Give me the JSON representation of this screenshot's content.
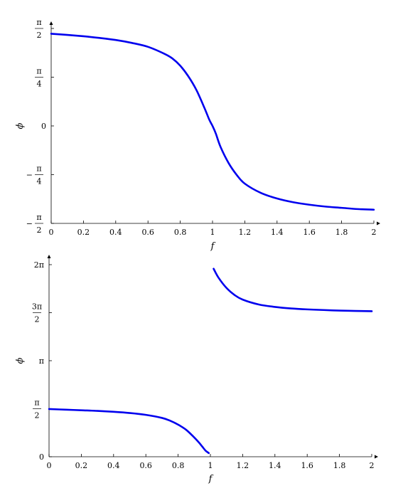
{
  "chart_data": [
    {
      "type": "line",
      "xlabel": "f",
      "ylabel": "ϕ",
      "xlim": [
        0,
        2
      ],
      "ylim": [
        -1.5708,
        1.5708
      ],
      "grid": false,
      "legend": "none",
      "line_color": "#0000ee",
      "x_ticks": [
        {
          "value": 0,
          "label": "0"
        },
        {
          "value": 0.2,
          "label": "0.2"
        },
        {
          "value": 0.4,
          "label": "0.4"
        },
        {
          "value": 0.6,
          "label": "0.6"
        },
        {
          "value": 0.8,
          "label": "0.8"
        },
        {
          "value": 1,
          "label": "1"
        },
        {
          "value": 1.2,
          "label": "1.2"
        },
        {
          "value": 1.4,
          "label": "1.4"
        },
        {
          "value": 1.6,
          "label": "1.6"
        },
        {
          "value": 1.8,
          "label": "1.8"
        },
        {
          "value": 2,
          "label": "2"
        }
      ],
      "y_ticks": [
        {
          "value": 1.5708,
          "num": "π",
          "den": "2",
          "sign": ""
        },
        {
          "value": 0.7854,
          "num": "π",
          "den": "4",
          "sign": ""
        },
        {
          "value": 0,
          "label": "0"
        },
        {
          "value": -0.7854,
          "num": "π",
          "den": "4",
          "sign": "−"
        },
        {
          "value": -1.5708,
          "num": "π",
          "den": "2",
          "sign": "−"
        }
      ],
      "series": [
        {
          "x": [
            0,
            0.1,
            0.2,
            0.3,
            0.4,
            0.5,
            0.6,
            0.7,
            0.75,
            0.8,
            0.85,
            0.9,
            0.95,
            0.98,
            1.0,
            1.02,
            1.05,
            1.1,
            1.15,
            1.2,
            1.3,
            1.4,
            1.5,
            1.6,
            1.7,
            1.8,
            1.9,
            2.0
          ],
          "y": [
            1.485,
            1.467,
            1.445,
            1.418,
            1.385,
            1.338,
            1.275,
            1.165,
            1.09,
            0.97,
            0.8,
            0.58,
            0.29,
            0.1,
            0.0,
            -0.12,
            -0.34,
            -0.6,
            -0.79,
            -0.93,
            -1.08,
            -1.17,
            -1.23,
            -1.27,
            -1.3,
            -1.32,
            -1.34,
            -1.35
          ]
        }
      ]
    },
    {
      "type": "line",
      "xlabel": "f",
      "ylabel": "ϕ",
      "xlim": [
        0,
        2
      ],
      "ylim": [
        0,
        6.2832
      ],
      "grid": false,
      "legend": "none",
      "line_color": "#0000ee",
      "x_ticks": [
        {
          "value": 0,
          "label": "0"
        },
        {
          "value": 0.2,
          "label": "0.2"
        },
        {
          "value": 0.4,
          "label": "0.4"
        },
        {
          "value": 0.6,
          "label": "0.6"
        },
        {
          "value": 0.8,
          "label": "0.8"
        },
        {
          "value": 1,
          "label": "1"
        },
        {
          "value": 1.2,
          "label": "1.2"
        },
        {
          "value": 1.4,
          "label": "1.4"
        },
        {
          "value": 1.6,
          "label": "1.6"
        },
        {
          "value": 1.8,
          "label": "1.8"
        },
        {
          "value": 2,
          "label": "2"
        }
      ],
      "y_ticks": [
        {
          "value": 6.2832,
          "label": "2π"
        },
        {
          "value": 4.7124,
          "num": "3π",
          "den": "2",
          "sign": ""
        },
        {
          "value": 3.1416,
          "label": "π"
        },
        {
          "value": 1.5708,
          "num": "π",
          "den": "2",
          "sign": ""
        },
        {
          "value": 0,
          "label": "0"
        }
      ],
      "series": [
        {
          "x": [
            0,
            0.1,
            0.2,
            0.3,
            0.4,
            0.5,
            0.6,
            0.7,
            0.75,
            0.8,
            0.85,
            0.9,
            0.93,
            0.95,
            0.97,
            0.99
          ],
          "y": [
            1.56,
            1.54,
            1.52,
            1.5,
            1.47,
            1.43,
            1.37,
            1.27,
            1.18,
            1.05,
            0.88,
            0.63,
            0.46,
            0.33,
            0.2,
            0.12
          ]
        },
        {
          "x": [
            1.02,
            1.05,
            1.1,
            1.15,
            1.2,
            1.3,
            1.4,
            1.5,
            1.6,
            1.7,
            1.8,
            1.9,
            2.0
          ],
          "y": [
            6.15,
            5.86,
            5.52,
            5.29,
            5.14,
            4.98,
            4.9,
            4.85,
            4.82,
            4.8,
            4.78,
            4.77,
            4.76
          ]
        }
      ]
    }
  ]
}
